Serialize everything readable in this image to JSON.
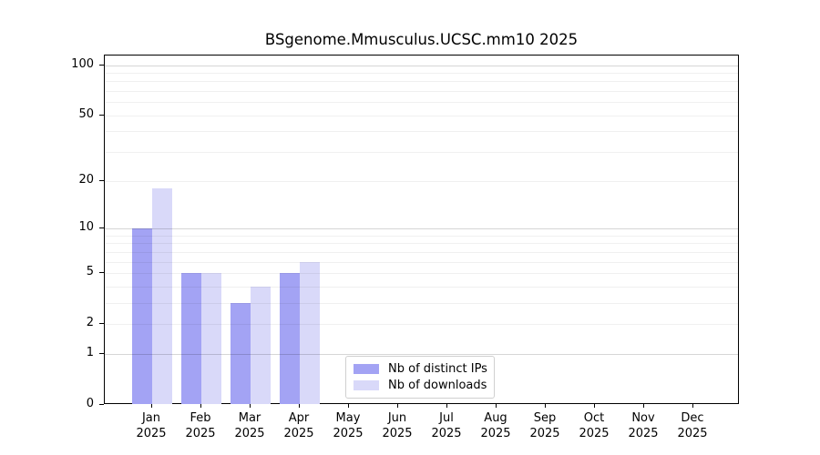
{
  "chart_data": {
    "type": "bar",
    "title": "BSgenome.Mmusculus.UCSC.mm10 2025",
    "categories": [
      "Jan",
      "Feb",
      "Mar",
      "Apr",
      "May",
      "Jun",
      "Jul",
      "Aug",
      "Sep",
      "Oct",
      "Nov",
      "Dec"
    ],
    "year_label": "2025",
    "series": [
      {
        "name": "Nb of distinct IPs",
        "color": "#a3a3f4",
        "values": [
          10,
          5,
          3,
          5,
          0,
          0,
          0,
          0,
          0,
          0,
          0,
          0
        ]
      },
      {
        "name": "Nb of downloads",
        "color": "#d9d9f9",
        "values": [
          18,
          5,
          4,
          6,
          0,
          0,
          0,
          0,
          0,
          0,
          0,
          0
        ]
      }
    ],
    "y_ticks": [
      0,
      1,
      2,
      5,
      10,
      20,
      50,
      100
    ],
    "y_minor_gridlines": [
      2,
      3,
      4,
      5,
      6,
      7,
      8,
      9,
      20,
      30,
      40,
      50,
      60,
      70,
      80,
      90
    ],
    "y_major_gridlines": [
      1,
      10,
      100
    ],
    "y_scale": "log10(1+x)",
    "ylim": [
      0,
      114
    ],
    "xlabel": "",
    "ylabel": "",
    "grid": "horizontal",
    "legend_position": "inside lower-center"
  }
}
